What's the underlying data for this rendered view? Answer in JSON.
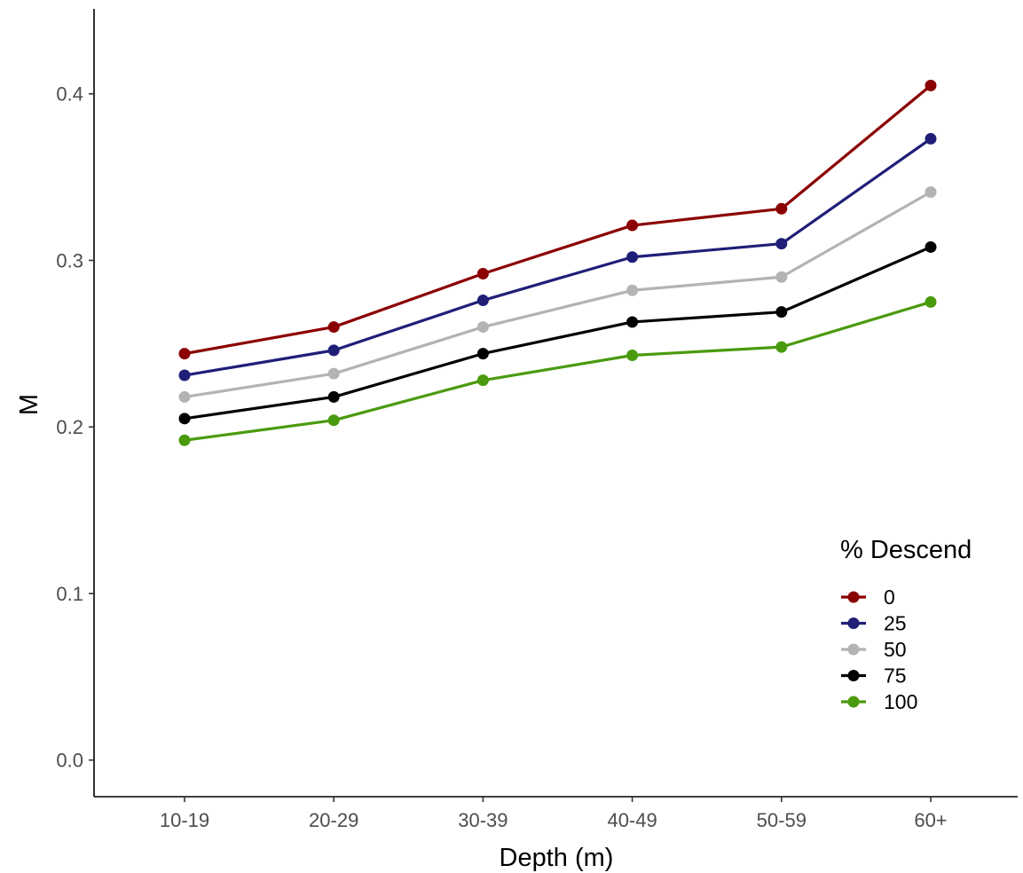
{
  "chart_data": {
    "type": "line",
    "xlabel": "Depth (m)",
    "ylabel": "M",
    "categories": [
      "10-19",
      "20-29",
      "30-39",
      "40-49",
      "50-59",
      "60+"
    ],
    "yticks": [
      "0.0",
      "0.1",
      "0.2",
      "0.3",
      "0.4"
    ],
    "ylim": [
      -0.022,
      0.451
    ],
    "grid": false,
    "legend": {
      "title": "% Descend",
      "position": "right-bottom-inside"
    },
    "series": [
      {
        "name": "0",
        "color": "#8b0000",
        "values": [
          0.244,
          0.26,
          0.292,
          0.321,
          0.331,
          0.405
        ]
      },
      {
        "name": "25",
        "color": "#1f1f78",
        "values": [
          0.231,
          0.246,
          0.276,
          0.302,
          0.31,
          0.373
        ]
      },
      {
        "name": "50",
        "color": "#b3b3b3",
        "values": [
          0.218,
          0.232,
          0.26,
          0.282,
          0.29,
          0.341
        ]
      },
      {
        "name": "75",
        "color": "#000000",
        "values": [
          0.205,
          0.218,
          0.244,
          0.263,
          0.269,
          0.308
        ]
      },
      {
        "name": "100",
        "color": "#4a9a0e",
        "values": [
          0.192,
          0.204,
          0.228,
          0.243,
          0.248,
          0.275
        ]
      }
    ]
  }
}
